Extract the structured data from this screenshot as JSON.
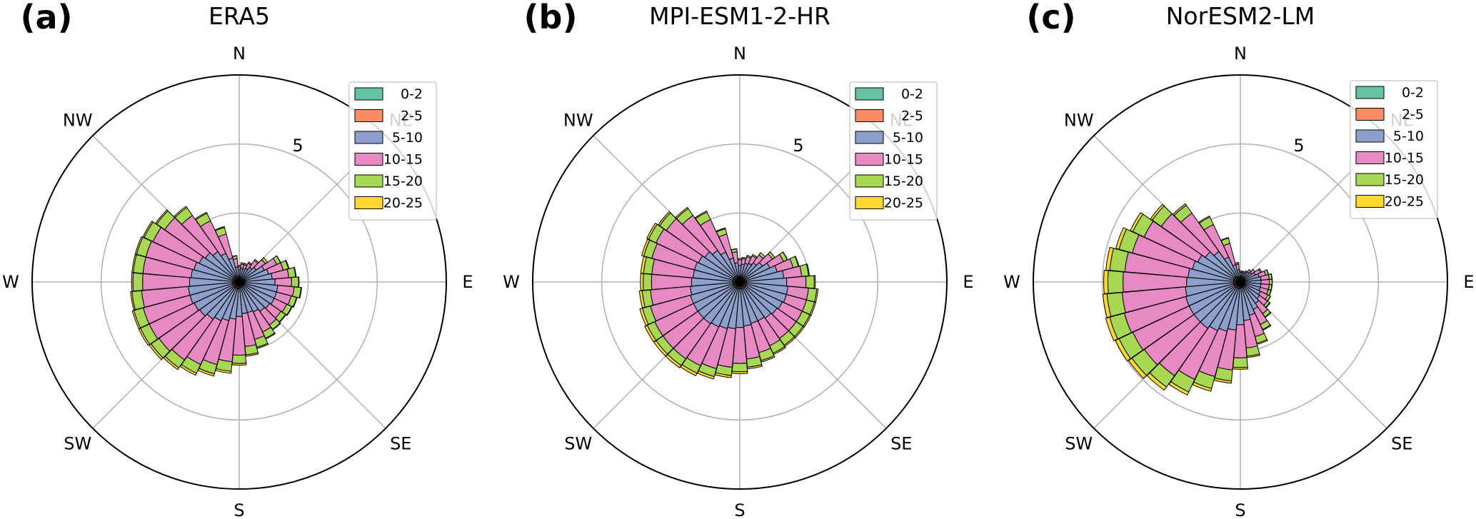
{
  "chart_data": [
    {
      "type": "windrose",
      "panel_label": "(a)",
      "title": "ERA5",
      "direction_labels": [
        "N",
        "NE",
        "E",
        "SE",
        "S",
        "SW",
        "W",
        "NW"
      ],
      "ring_label": "5",
      "rlim": [
        0,
        7.5
      ],
      "rings": [
        5
      ],
      "legend": [
        "0-2",
        "2-5",
        "5-10",
        "10-15",
        "15-20",
        "20-25"
      ],
      "bins_per_circle": 36,
      "series": [
        {
          "name": "0-2",
          "values": [
            0.05,
            0.05,
            0.05,
            0.05,
            0.05,
            0.05,
            0.05,
            0.05,
            0.05,
            0.05,
            0.05,
            0.05,
            0.05,
            0.05,
            0.05,
            0.05,
            0.05,
            0.05,
            0.05,
            0.05,
            0.05,
            0.05,
            0.05,
            0.05,
            0.05,
            0.05,
            0.05,
            0.05,
            0.05,
            0.05,
            0.05,
            0.05,
            0.05,
            0.05,
            0.05,
            0.05
          ]
        },
        {
          "name": "2-5",
          "values": [
            0.1,
            0.1,
            0.1,
            0.1,
            0.1,
            0.1,
            0.15,
            0.15,
            0.15,
            0.15,
            0.15,
            0.15,
            0.15,
            0.15,
            0.15,
            0.15,
            0.15,
            0.15,
            0.2,
            0.2,
            0.2,
            0.2,
            0.2,
            0.2,
            0.2,
            0.2,
            0.2,
            0.2,
            0.2,
            0.2,
            0.2,
            0.2,
            0.2,
            0.2,
            0.15,
            0.1
          ]
        },
        {
          "name": "5-10",
          "values": [
            0.3,
            0.35,
            0.35,
            0.4,
            0.5,
            0.6,
            0.8,
            0.9,
            1.0,
            1.1,
            1.2,
            1.2,
            1.2,
            1.15,
            1.1,
            1.0,
            0.95,
            0.95,
            1.0,
            1.1,
            1.2,
            1.3,
            1.4,
            1.5,
            1.55,
            1.6,
            1.6,
            1.55,
            1.5,
            1.45,
            1.35,
            1.25,
            1.1,
            0.9,
            0.7,
            0.4
          ]
        },
        {
          "name": "10-15",
          "values": [
            0.1,
            0.15,
            0.15,
            0.2,
            0.3,
            0.4,
            0.5,
            0.55,
            0.6,
            0.6,
            0.6,
            0.55,
            0.5,
            0.5,
            0.6,
            0.8,
            1.0,
            1.2,
            1.4,
            1.55,
            1.65,
            1.75,
            1.8,
            1.8,
            1.8,
            1.75,
            1.7,
            1.7,
            1.75,
            1.8,
            1.85,
            1.8,
            1.6,
            1.3,
            0.9,
            0.3
          ]
        },
        {
          "name": "15-20",
          "values": [
            0.05,
            0.05,
            0.05,
            0.05,
            0.05,
            0.1,
            0.15,
            0.2,
            0.25,
            0.25,
            0.25,
            0.2,
            0.2,
            0.2,
            0.2,
            0.25,
            0.3,
            0.3,
            0.3,
            0.35,
            0.35,
            0.35,
            0.35,
            0.35,
            0.35,
            0.35,
            0.35,
            0.35,
            0.35,
            0.35,
            0.35,
            0.35,
            0.35,
            0.3,
            0.25,
            0.1
          ]
        },
        {
          "name": "20-25",
          "values": [
            0,
            0,
            0,
            0,
            0,
            0,
            0.01,
            0.02,
            0.02,
            0.02,
            0.02,
            0.02,
            0.02,
            0.02,
            0.02,
            0.03,
            0.04,
            0.05,
            0.06,
            0.07,
            0.08,
            0.08,
            0.08,
            0.08,
            0.07,
            0.06,
            0.05,
            0.05,
            0.05,
            0.05,
            0.05,
            0.05,
            0.05,
            0.04,
            0.03,
            0.01
          ]
        }
      ]
    },
    {
      "type": "windrose",
      "panel_label": "(b)",
      "title": "MPI-ESM1-2-HR",
      "direction_labels": [
        "N",
        "NE",
        "E",
        "SE",
        "S",
        "SW",
        "W",
        "NW"
      ],
      "ring_label": "5",
      "rlim": [
        0,
        7.5
      ],
      "rings": [
        5
      ],
      "legend": [
        "0-2",
        "2-5",
        "5-10",
        "10-15",
        "15-20",
        "20-25"
      ],
      "bins_per_circle": 36,
      "series": [
        {
          "name": "0-2",
          "values": [
            0.05,
            0.05,
            0.05,
            0.05,
            0.05,
            0.05,
            0.05,
            0.05,
            0.05,
            0.05,
            0.05,
            0.05,
            0.05,
            0.05,
            0.05,
            0.05,
            0.05,
            0.05,
            0.05,
            0.05,
            0.05,
            0.05,
            0.05,
            0.05,
            0.05,
            0.05,
            0.05,
            0.05,
            0.05,
            0.05,
            0.05,
            0.05,
            0.05,
            0.05,
            0.05,
            0.05
          ]
        },
        {
          "name": "2-5",
          "values": [
            0.15,
            0.15,
            0.15,
            0.15,
            0.15,
            0.15,
            0.15,
            0.15,
            0.2,
            0.2,
            0.2,
            0.2,
            0.2,
            0.2,
            0.2,
            0.2,
            0.2,
            0.2,
            0.2,
            0.2,
            0.2,
            0.2,
            0.2,
            0.2,
            0.2,
            0.2,
            0.2,
            0.2,
            0.2,
            0.2,
            0.2,
            0.2,
            0.2,
            0.2,
            0.15,
            0.15
          ]
        },
        {
          "name": "5-10",
          "values": [
            0.4,
            0.45,
            0.5,
            0.55,
            0.65,
            0.8,
            1.0,
            1.2,
            1.35,
            1.45,
            1.5,
            1.5,
            1.45,
            1.4,
            1.35,
            1.3,
            1.3,
            1.35,
            1.4,
            1.45,
            1.5,
            1.55,
            1.6,
            1.6,
            1.6,
            1.6,
            1.55,
            1.5,
            1.45,
            1.45,
            1.4,
            1.3,
            1.15,
            0.95,
            0.7,
            0.5
          ]
        },
        {
          "name": "10-15",
          "values": [
            0.2,
            0.2,
            0.25,
            0.3,
            0.35,
            0.45,
            0.55,
            0.6,
            0.65,
            0.7,
            0.75,
            0.75,
            0.8,
            0.85,
            0.9,
            1.0,
            1.1,
            1.2,
            1.3,
            1.4,
            1.5,
            1.55,
            1.55,
            1.55,
            1.55,
            1.5,
            1.45,
            1.45,
            1.5,
            1.6,
            1.7,
            1.7,
            1.55,
            1.3,
            0.9,
            0.4
          ]
        },
        {
          "name": "15-20",
          "values": [
            0.05,
            0.05,
            0.05,
            0.05,
            0.1,
            0.1,
            0.15,
            0.2,
            0.25,
            0.3,
            0.3,
            0.3,
            0.3,
            0.3,
            0.3,
            0.3,
            0.3,
            0.3,
            0.3,
            0.3,
            0.3,
            0.3,
            0.3,
            0.3,
            0.3,
            0.3,
            0.3,
            0.3,
            0.3,
            0.3,
            0.3,
            0.3,
            0.3,
            0.3,
            0.2,
            0.1
          ]
        },
        {
          "name": "20-25",
          "values": [
            0,
            0,
            0,
            0,
            0,
            0,
            0.01,
            0.02,
            0.03,
            0.04,
            0.05,
            0.05,
            0.05,
            0.05,
            0.05,
            0.05,
            0.05,
            0.06,
            0.07,
            0.08,
            0.09,
            0.1,
            0.1,
            0.1,
            0.1,
            0.1,
            0.1,
            0.1,
            0.1,
            0.08,
            0.07,
            0.06,
            0.05,
            0.04,
            0.03,
            0.01
          ]
        }
      ]
    },
    {
      "type": "windrose",
      "panel_label": "(c)",
      "title": "NorESM2-LM",
      "direction_labels": [
        "N",
        "NE",
        "E",
        "SE",
        "S",
        "SW",
        "W",
        "NW"
      ],
      "ring_label": "5",
      "rlim": [
        0,
        7.5
      ],
      "rings": [
        5
      ],
      "legend": [
        "0-2",
        "2-5",
        "5-10",
        "10-15",
        "15-20",
        "20-25"
      ],
      "bins_per_circle": 36,
      "series": [
        {
          "name": "0-2",
          "values": [
            0.05,
            0.05,
            0.05,
            0.05,
            0.05,
            0.05,
            0.05,
            0.05,
            0.05,
            0.05,
            0.05,
            0.05,
            0.05,
            0.05,
            0.05,
            0.05,
            0.05,
            0.05,
            0.05,
            0.05,
            0.05,
            0.05,
            0.05,
            0.05,
            0.05,
            0.05,
            0.05,
            0.05,
            0.05,
            0.05,
            0.05,
            0.05,
            0.05,
            0.05,
            0.05,
            0.05
          ]
        },
        {
          "name": "2-5",
          "values": [
            0.1,
            0.1,
            0.1,
            0.1,
            0.1,
            0.1,
            0.1,
            0.1,
            0.1,
            0.1,
            0.1,
            0.1,
            0.15,
            0.15,
            0.15,
            0.15,
            0.15,
            0.15,
            0.15,
            0.2,
            0.2,
            0.2,
            0.2,
            0.2,
            0.2,
            0.2,
            0.2,
            0.2,
            0.2,
            0.2,
            0.2,
            0.2,
            0.2,
            0.15,
            0.1,
            0.1
          ]
        },
        {
          "name": "5-10",
          "values": [
            0.2,
            0.2,
            0.2,
            0.25,
            0.3,
            0.35,
            0.45,
            0.55,
            0.6,
            0.6,
            0.6,
            0.6,
            0.6,
            0.65,
            0.75,
            0.9,
            1.05,
            1.2,
            1.35,
            1.5,
            1.6,
            1.7,
            1.8,
            1.8,
            1.8,
            1.8,
            1.75,
            1.7,
            1.65,
            1.55,
            1.45,
            1.3,
            1.1,
            0.8,
            0.5,
            0.3
          ]
        },
        {
          "name": "10-15",
          "values": [
            0.05,
            0.05,
            0.05,
            0.05,
            0.1,
            0.15,
            0.2,
            0.25,
            0.3,
            0.3,
            0.3,
            0.3,
            0.3,
            0.35,
            0.45,
            0.6,
            0.8,
            1.0,
            1.2,
            1.45,
            1.7,
            1.95,
            2.1,
            2.2,
            2.25,
            2.3,
            2.3,
            2.3,
            2.3,
            2.25,
            2.15,
            1.95,
            1.7,
            1.3,
            0.8,
            0.2
          ]
        },
        {
          "name": "15-20",
          "values": [
            0,
            0,
            0,
            0,
            0,
            0,
            0.05,
            0.1,
            0.1,
            0.1,
            0.1,
            0.1,
            0.1,
            0.1,
            0.15,
            0.2,
            0.25,
            0.3,
            0.35,
            0.4,
            0.45,
            0.5,
            0.5,
            0.55,
            0.55,
            0.55,
            0.55,
            0.55,
            0.55,
            0.5,
            0.45,
            0.4,
            0.35,
            0.3,
            0.2,
            0.05
          ]
        },
        {
          "name": "20-25",
          "values": [
            0,
            0,
            0,
            0,
            0,
            0,
            0,
            0.01,
            0.01,
            0.01,
            0.01,
            0.01,
            0.01,
            0.02,
            0.02,
            0.03,
            0.04,
            0.05,
            0.06,
            0.08,
            0.1,
            0.12,
            0.14,
            0.15,
            0.15,
            0.15,
            0.15,
            0.15,
            0.14,
            0.12,
            0.1,
            0.08,
            0.06,
            0.04,
            0.02,
            0.01
          ]
        }
      ]
    }
  ],
  "colors": {
    "0-2": "#66c2a5",
    "2-5": "#fc8d62",
    "5-10": "#8da0cb",
    "10-15": "#e78ac3",
    "15-20": "#a6d854",
    "20-25": "#ffd92f",
    "grid": "#b0b0b0",
    "edge": "#000000"
  }
}
